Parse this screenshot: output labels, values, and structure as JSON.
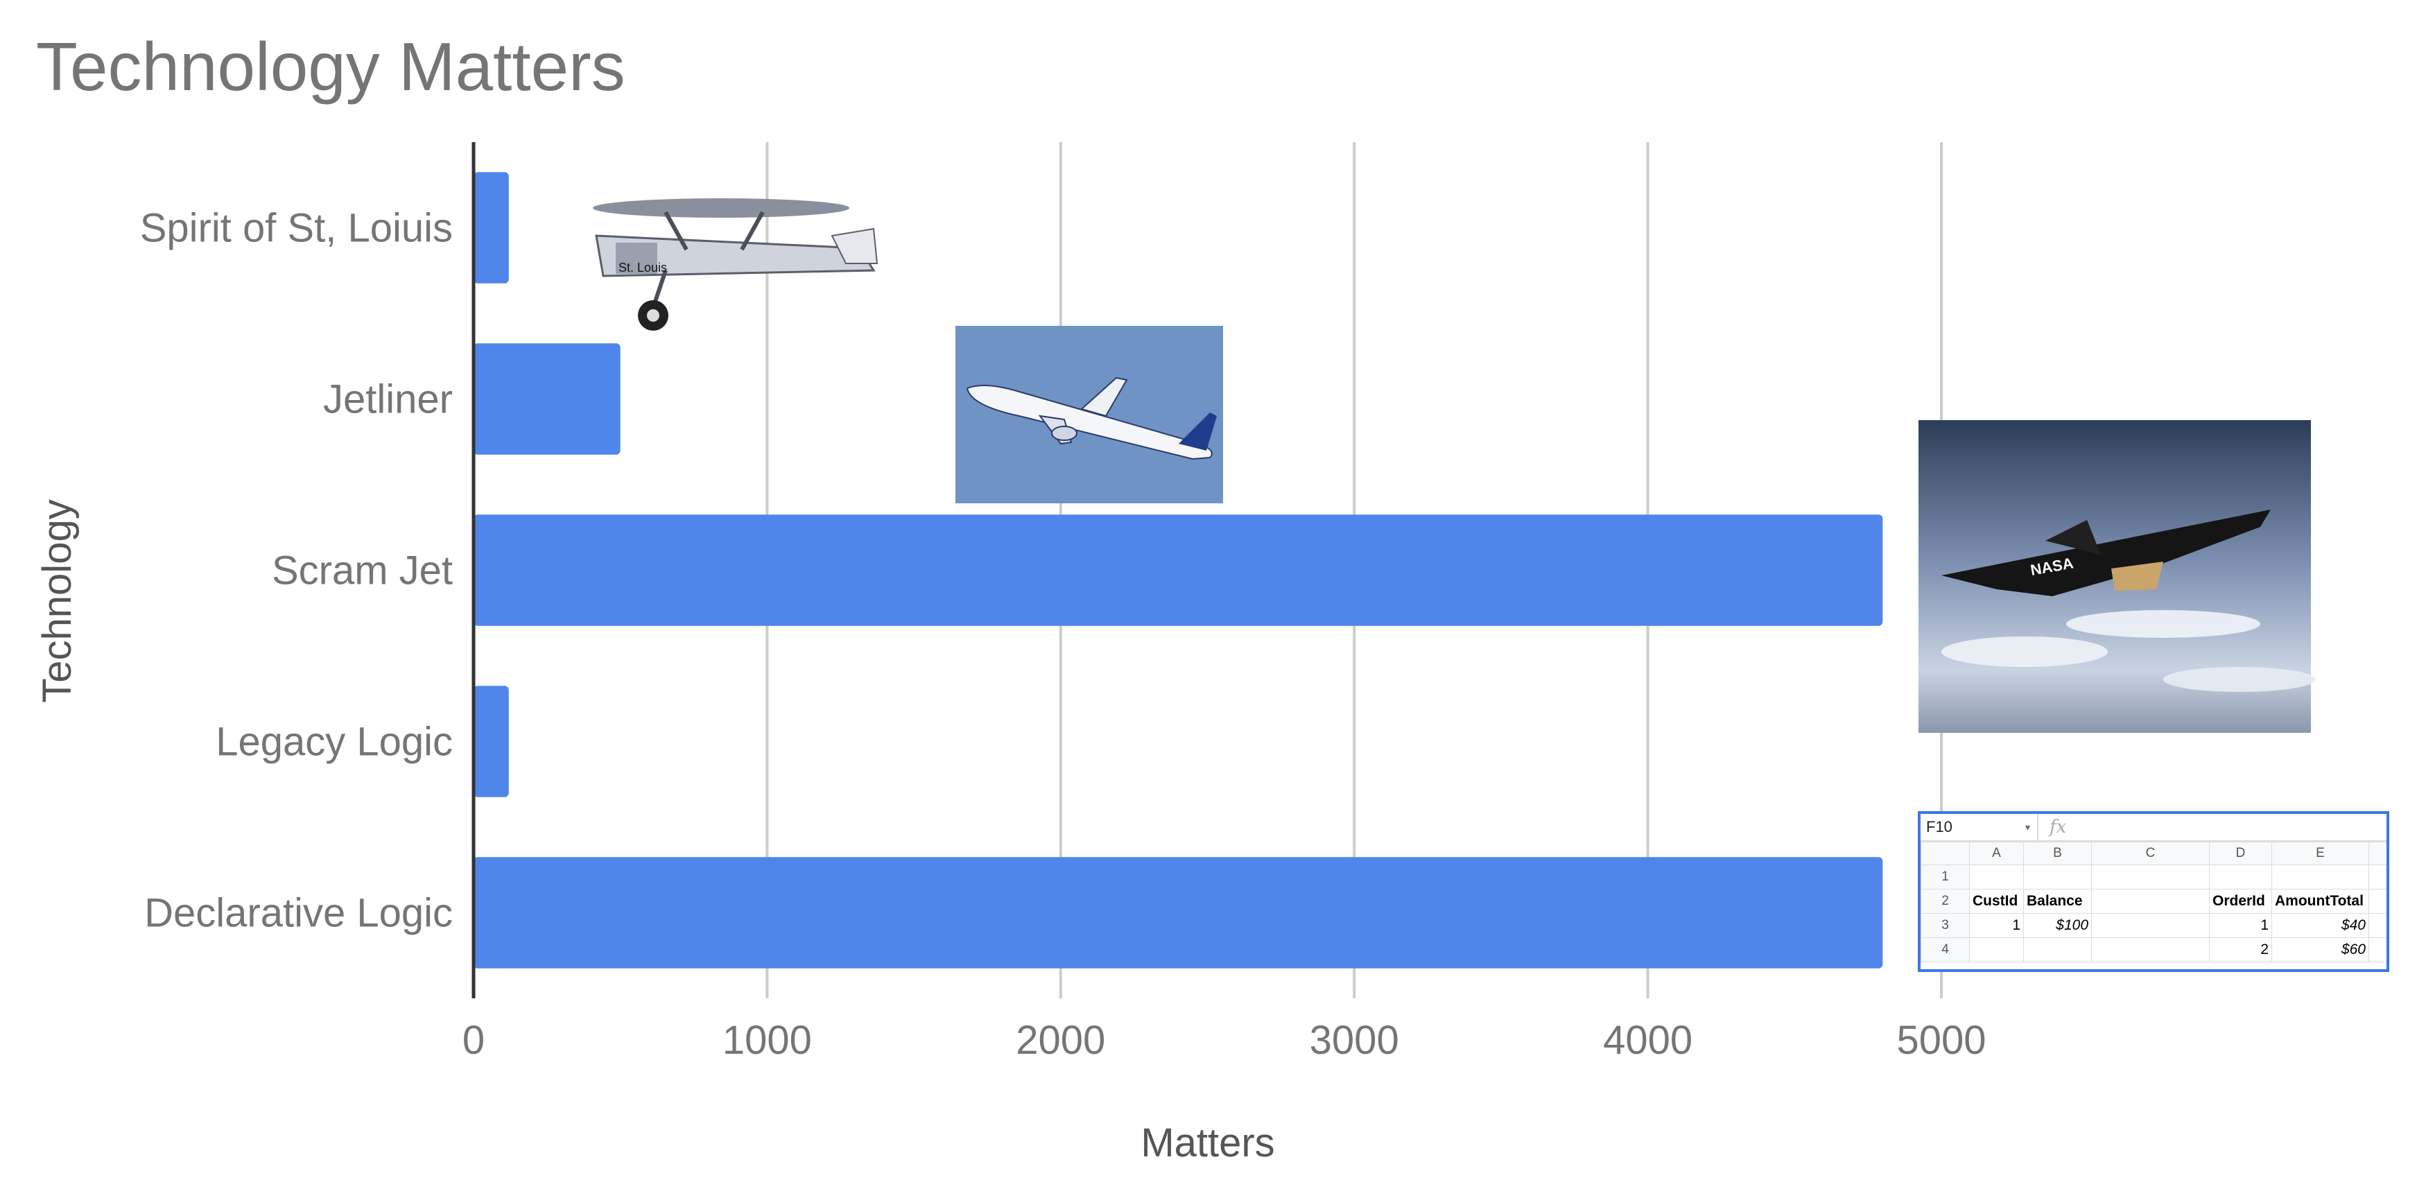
{
  "chart_data": {
    "type": "bar",
    "orientation": "horizontal",
    "title": "Technology Matters",
    "xlabel": "Matters",
    "ylabel": "Technology",
    "categories": [
      "Spirit of St, Loiuis",
      "Jetliner",
      "Scram Jet",
      "Legacy Logic",
      "Declarative Logic"
    ],
    "values": [
      120,
      500,
      4800,
      120,
      4800
    ],
    "xlim": [
      0,
      5000
    ],
    "xticks": [
      "0",
      "1000",
      "2000",
      "3000",
      "4000",
      "5000"
    ],
    "grid": true,
    "legend": "none",
    "bar_color": "#5086ea"
  },
  "images": {
    "plane1_icon": "biplane-image",
    "plane2_icon": "jetliner-image",
    "plane3_icon": "scramjet-image",
    "plane1_label": "St. Louis",
    "plane3_label": "NASA"
  },
  "spreadsheet": {
    "cell_ref": "F10",
    "fx": "fx",
    "columns": [
      "A",
      "B",
      "C",
      "D",
      "E"
    ],
    "rows": [
      {
        "n": "1",
        "cells": [
          "",
          "",
          "",
          "",
          ""
        ]
      },
      {
        "n": "2",
        "cells": [
          "CustId",
          "Balance",
          "",
          "OrderId",
          "AmountTotal"
        ]
      },
      {
        "n": "3",
        "cells": [
          "1",
          "$100",
          "",
          "1",
          "$40"
        ]
      },
      {
        "n": "4",
        "cells": [
          "",
          "",
          "",
          "2",
          "$60"
        ]
      }
    ]
  }
}
